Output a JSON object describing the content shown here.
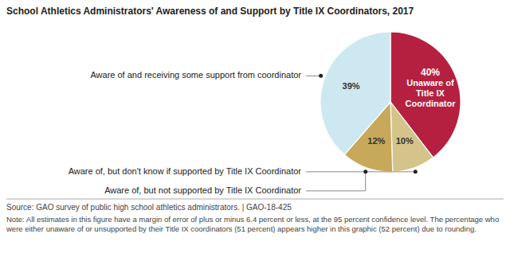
{
  "chart_data": {
    "type": "pie",
    "title": "School Athletics Administrators' Awareness of and Support by Title IX Coordinators, 2017",
    "categories": [
      "Unaware of Title IX Coordinator",
      "Aware of, but don't know if supported by Title IX Coordinator",
      "Aware of, but not supported by Title IX Coordinator",
      "Aware of and receiving some support from coordinator"
    ],
    "values": [
      40,
      10,
      12,
      39
    ],
    "value_labels": [
      "40%",
      "10%",
      "12%",
      "39%"
    ],
    "data_labels": true,
    "colors": [
      "#b52040",
      "#d4c48a",
      "#c8a85a",
      "#cde8f0"
    ],
    "source": "Source: GAO survey of public high school athletics administrators.  |  GAO-18-425",
    "note": "Note: All estimates in this figure have a margin of error of plus or minus 6.4 percent or less, at the 95 percent confidence level. The percentage who were either unaware of or unsupported by their Title IX coordinators (51 percent) appears higher in this graphic (52 percent) due to rounding."
  }
}
